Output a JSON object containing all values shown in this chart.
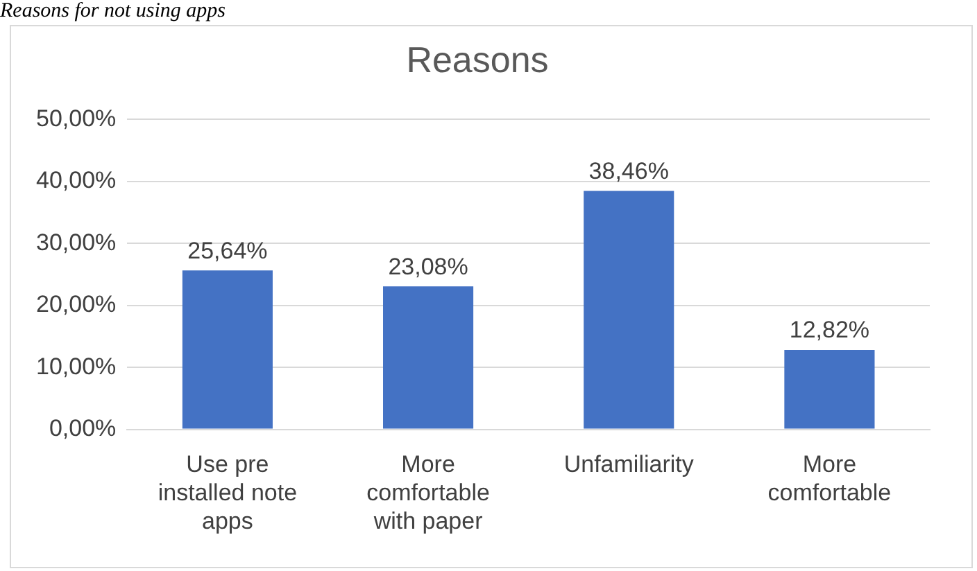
{
  "chart_data": {
    "type": "bar",
    "title": "Reasons",
    "annotations": [
      "Reasons for not using apps"
    ],
    "categories": [
      "Use pre installed note apps",
      "More comfortable with paper",
      "Unfamiliarity",
      "More comfortable"
    ],
    "values": [
      25.64,
      23.08,
      38.46,
      12.82
    ],
    "value_labels": [
      "25,64%",
      "23,08%",
      "38,46%",
      "12,82%"
    ],
    "color": "#4472c4",
    "ylim": [
      0,
      50
    ],
    "yticks": [
      {
        "value": 0,
        "label": "0,00%"
      },
      {
        "value": 10,
        "label": "10,00%"
      },
      {
        "value": 20,
        "label": "20,00%"
      },
      {
        "value": 30,
        "label": "30,00%"
      },
      {
        "value": 40,
        "label": "40,00%"
      },
      {
        "value": 50,
        "label": "50,00%"
      }
    ],
    "grid": "y"
  }
}
